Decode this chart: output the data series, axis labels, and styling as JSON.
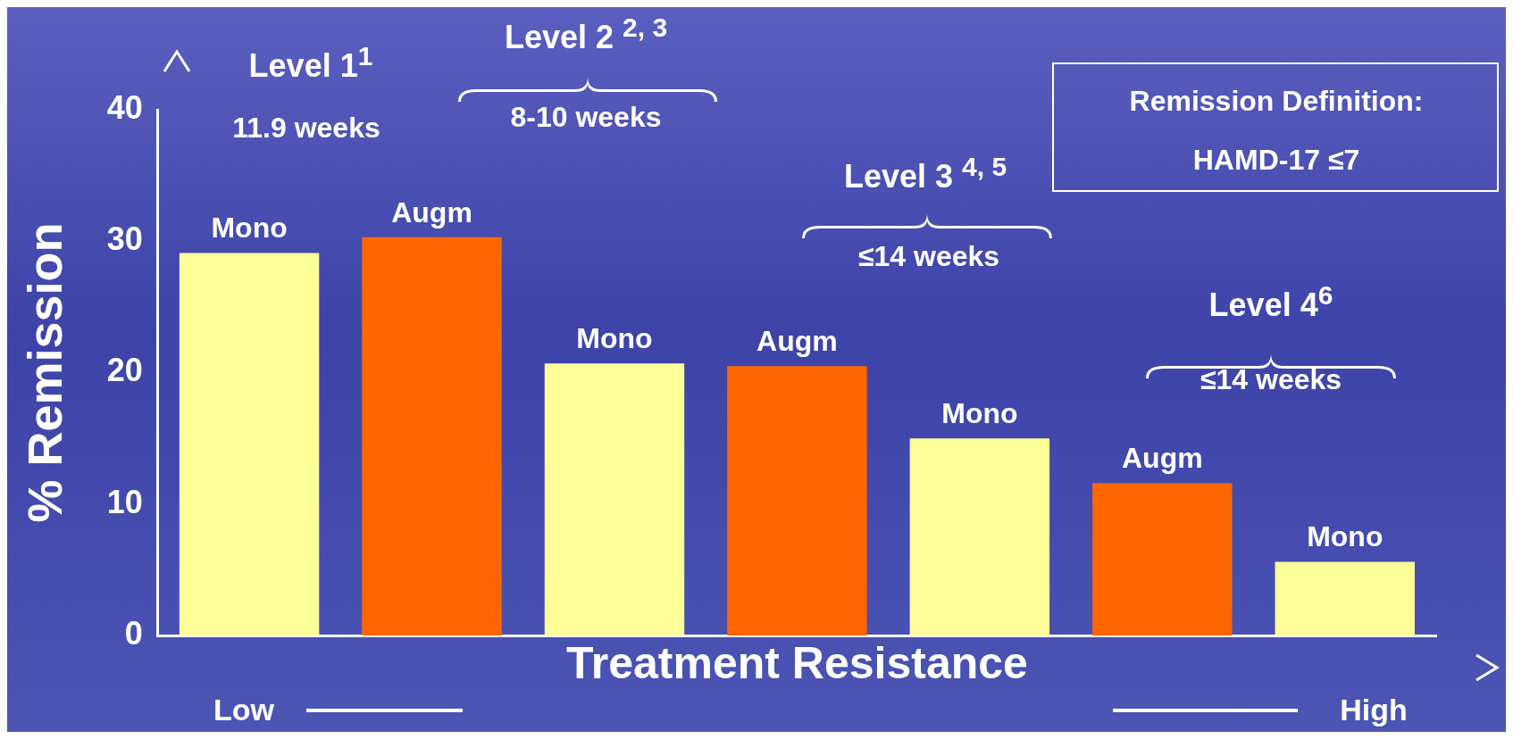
{
  "chart_data": {
    "type": "bar",
    "ylabel": "% Remission",
    "xlabel": "Treatment Resistance",
    "categories": [
      null,
      null,
      null,
      null,
      null,
      null,
      null
    ],
    "series": [
      {
        "colors": [
          "#ffff99",
          "#ff6600",
          "#ffff99",
          "#ff6600",
          "#ffff99",
          "#ff6600",
          "#ffff99"
        ],
        "values": [
          29.1,
          30.3,
          20.7,
          20.5,
          15.0,
          11.6,
          5.6
        ]
      }
    ],
    "ylim": [
      0,
      40
    ],
    "yticks": [
      0,
      10,
      20,
      30,
      40
    ],
    "grid": false,
    "legend": false,
    "annotations": [
      "Level 1$^{1}$",
      "11.9 weeks",
      "Level 2 $^{2, 3}$",
      "8-10 weeks",
      "Level 3 $^{4, 5}$",
      "≤14 weeks",
      "Level 4$^{6}$",
      "≤14 weeks",
      "Remission Definition:",
      "HAMD-17 ≤7",
      "Low",
      "High",
      "Mono",
      "Augm",
      "Mono",
      "Augm",
      "Mono",
      "Augm",
      "Mono"
    ]
  }
}
